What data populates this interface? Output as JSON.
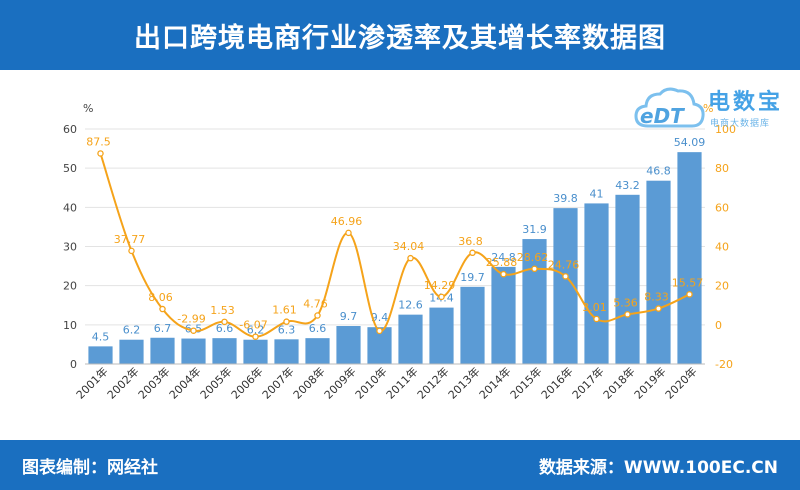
{
  "title": "出口跨境电商行业渗透率及其增长率数据图",
  "footer": {
    "left": "图表编制：网经社",
    "right": "数据来源：WWW.100EC.CN"
  },
  "logo": {
    "en": "eDT",
    "cn": "电数宝",
    "sub": "电商大数据库"
  },
  "colors": {
    "header": "#1a6fc0",
    "bar": "#5b9bd5",
    "line": "#f5a31a",
    "bar_label": "#4a8fcc",
    "line_label": "#f5a31a"
  },
  "chart_data": {
    "type": "bar",
    "categories": [
      "2001年",
      "2002年",
      "2003年",
      "2004年",
      "2005年",
      "2006年",
      "2007年",
      "2008年",
      "2009年",
      "2010年",
      "2011年",
      "2012年",
      "2013年",
      "2014年",
      "2015年",
      "2016年",
      "2017年",
      "2018年",
      "2019年",
      "2020年"
    ],
    "series": [
      {
        "type": "bar",
        "axis": "left",
        "values": [
          4.5,
          6.2,
          6.7,
          6.5,
          6.6,
          6.2,
          6.3,
          6.6,
          9.7,
          9.4,
          12.6,
          14.4,
          19.7,
          24.8,
          31.9,
          39.8,
          41,
          43.2,
          46.8,
          54.09
        ],
        "labels": [
          "4.5",
          "6.2",
          "6.7",
          "6.5",
          "6.6",
          "6.2",
          "6.3",
          "6.6",
          "9.7",
          "9.4",
          "12.6",
          "14.4",
          "19.7",
          "24.8",
          "31.9",
          "39.8",
          "41",
          "43.2",
          "46.8",
          "54.09"
        ]
      },
      {
        "type": "line",
        "axis": "right",
        "smooth": true,
        "values": [
          87.5,
          37.77,
          8.06,
          -2.99,
          1.53,
          -6.07,
          1.61,
          4.76,
          46.96,
          -3.09,
          34.04,
          14.29,
          36.8,
          25.88,
          28.62,
          24.76,
          3.01,
          5.36,
          8.33,
          15.57
        ],
        "labels": [
          "87.5",
          "37.77",
          "8.06",
          "-2.99",
          "1.53",
          "-6.07",
          "1.61",
          "4.76",
          "46.96",
          "",
          "34.04",
          "14.29",
          "36.8",
          "25.88",
          "28.62",
          "24.76",
          "3.01",
          "5.36",
          "8.33",
          "15.57"
        ]
      }
    ],
    "y_left": {
      "unit": "%",
      "min": 0,
      "max": 60,
      "ticks": [
        "0",
        "10",
        "20",
        "30",
        "40",
        "50",
        "60"
      ]
    },
    "y_right": {
      "unit": "%",
      "min": -20,
      "max": 100,
      "ticks": [
        "-20",
        "0",
        "20",
        "40",
        "60",
        "80",
        "100"
      ]
    },
    "grid": true,
    "legend": "none"
  }
}
